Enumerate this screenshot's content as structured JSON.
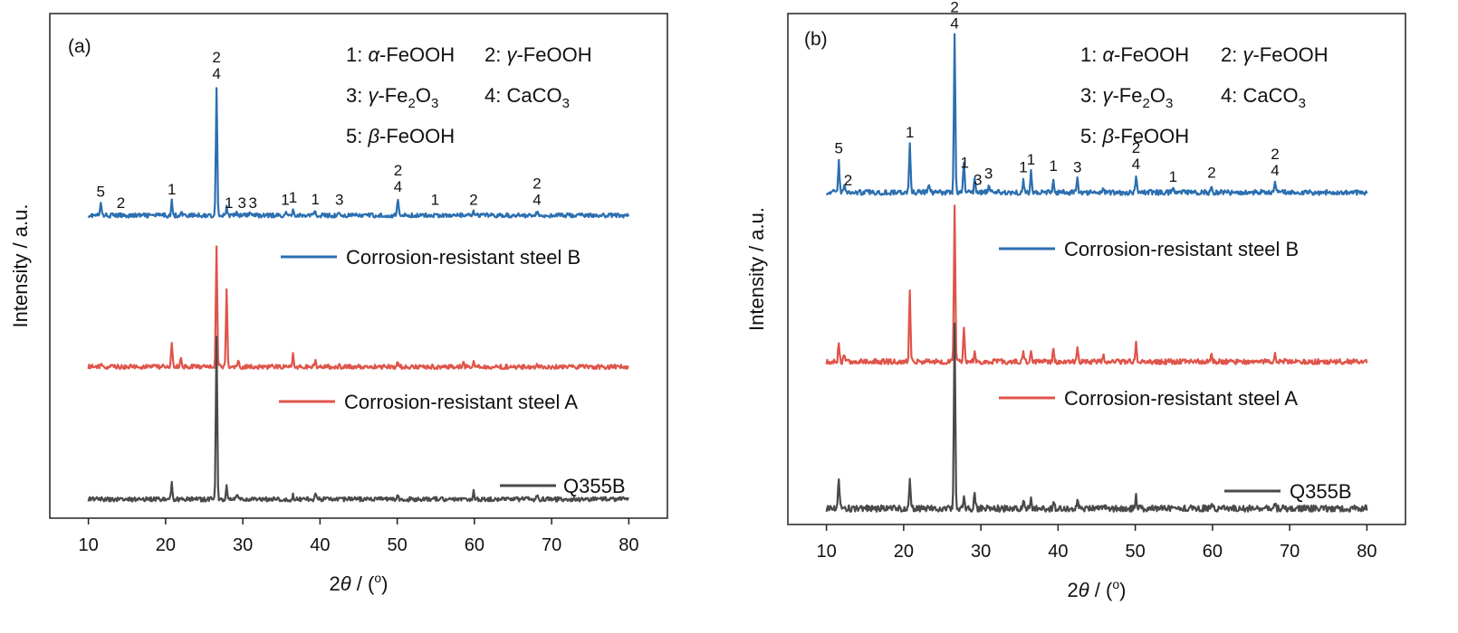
{
  "chart_data": [
    {
      "type": "line",
      "panel_label": "(a)",
      "xlabel": "2θ / (°)",
      "ylabel": "Intensity / a.u.",
      "xlim": [
        5,
        85
      ],
      "xticks": [
        10,
        20,
        30,
        40,
        50,
        60,
        70,
        80
      ],
      "yticks": [],
      "grid": false,
      "phase_legend": [
        {
          "num": "1:",
          "sym": "α",
          "rest": "-FeOOH"
        },
        {
          "num": "2:",
          "sym": "γ",
          "rest": "-FeOOH"
        },
        {
          "num": "3:",
          "sym": "γ",
          "rest": "-Fe2O3"
        },
        {
          "num": "4:",
          "rest": "CaCO3"
        },
        {
          "num": "5:",
          "sym": "β",
          "rest": "-FeOOH"
        }
      ],
      "series": [
        {
          "name": "Corrosion-resistant steel B",
          "color": "#2b6fb0",
          "baseline": 4.8,
          "noise": 0.035,
          "peaks": [
            [
              11.6,
              0.18
            ],
            [
              20.8,
              0.22
            ],
            [
              22.0,
              0.07
            ],
            [
              26.6,
              2.05
            ],
            [
              27.9,
              0.12
            ],
            [
              29.2,
              0.05
            ],
            [
              31.0,
              0.05
            ],
            [
              35.5,
              0.05
            ],
            [
              36.5,
              0.09
            ],
            [
              39.4,
              0.06
            ],
            [
              42.5,
              0.05
            ],
            [
              50.1,
              0.26
            ],
            [
              54.9,
              0.05
            ],
            [
              59.9,
              0.05
            ],
            [
              68.1,
              0.05
            ]
          ]
        },
        {
          "name": "Corrosion-resistant steel A",
          "color": "#e0544a",
          "baseline": 2.4,
          "noise": 0.035,
          "peaks": [
            [
              11.6,
              0.04
            ],
            [
              20.8,
              0.35
            ],
            [
              22.0,
              0.15
            ],
            [
              26.6,
              1.9
            ],
            [
              27.9,
              1.2
            ],
            [
              29.4,
              0.12
            ],
            [
              36.5,
              0.2
            ],
            [
              39.4,
              0.1
            ],
            [
              42.5,
              0.06
            ],
            [
              50.1,
              0.07
            ],
            [
              58.6,
              0.08
            ],
            [
              59.9,
              0.1
            ],
            [
              68.1,
              0.03
            ]
          ]
        },
        {
          "name": "Q355B",
          "color": "#4a4a4a",
          "baseline": 0.3,
          "noise": 0.035,
          "peaks": [
            [
              20.8,
              0.25
            ],
            [
              26.6,
              2.6
            ],
            [
              27.9,
              0.2
            ],
            [
              29.2,
              0.08
            ],
            [
              36.5,
              0.06
            ],
            [
              39.4,
              0.08
            ],
            [
              42.5,
              0.05
            ],
            [
              50.1,
              0.05
            ],
            [
              59.9,
              0.12
            ],
            [
              68.1,
              0.05
            ]
          ]
        }
      ],
      "peak_labels": [
        {
          "x": 11.6,
          "text": [
            "5"
          ],
          "series": 0
        },
        {
          "x": 14.2,
          "text": [
            "2"
          ],
          "series": 0
        },
        {
          "x": 20.8,
          "text": [
            "1"
          ],
          "series": 0
        },
        {
          "x": 26.6,
          "text": [
            "2",
            "4"
          ],
          "series": 0
        },
        {
          "x": 28.2,
          "text": [
            "1"
          ],
          "series": 0
        },
        {
          "x": 29.9,
          "text": [
            "3"
          ],
          "series": 0
        },
        {
          "x": 31.3,
          "text": [
            "3"
          ],
          "series": 0
        },
        {
          "x": 35.5,
          "text": [
            "1"
          ],
          "series": 0
        },
        {
          "x": 36.5,
          "text": [
            "1"
          ],
          "series": 0
        },
        {
          "x": 39.4,
          "text": [
            "1"
          ],
          "series": 0
        },
        {
          "x": 42.5,
          "text": [
            "3"
          ],
          "series": 0
        },
        {
          "x": 50.1,
          "text": [
            "2",
            "4"
          ],
          "series": 0
        },
        {
          "x": 54.9,
          "text": [
            "1"
          ],
          "series": 0
        },
        {
          "x": 59.9,
          "text": [
            "2"
          ],
          "series": 0
        },
        {
          "x": 68.1,
          "text": [
            "2",
            "4"
          ],
          "series": 0
        }
      ],
      "ylim": [
        0,
        8
      ]
    },
    {
      "type": "line",
      "panel_label": "(b)",
      "xlabel": "2θ / (°)",
      "ylabel": "Intensity / a.u.",
      "xlim": [
        5,
        85
      ],
      "xticks": [
        10,
        20,
        30,
        40,
        50,
        60,
        70,
        80
      ],
      "yticks": [],
      "grid": false,
      "phase_legend": [
        {
          "num": "1:",
          "sym": "α",
          "rest": "-FeOOH"
        },
        {
          "num": "2:",
          "sym": "γ",
          "rest": "-FeOOH"
        },
        {
          "num": "3:",
          "sym": "γ",
          "rest": "-Fe2O3"
        },
        {
          "num": "4:",
          "rest": "CaCO3"
        },
        {
          "num": "5:",
          "sym": "β",
          "rest": "-FeOOH"
        }
      ],
      "series": [
        {
          "name": "Corrosion-resistant steel B",
          "color": "#2b6fb0",
          "baseline": 5.2,
          "noise": 0.04,
          "peaks": [
            [
              11.6,
              0.5
            ],
            [
              12.3,
              0.12
            ],
            [
              20.8,
              0.75
            ],
            [
              23.3,
              0.15
            ],
            [
              26.6,
              2.45
            ],
            [
              27.8,
              0.5
            ],
            [
              29.2,
              0.2
            ],
            [
              31.0,
              0.1
            ],
            [
              35.5,
              0.2
            ],
            [
              36.5,
              0.32
            ],
            [
              39.4,
              0.22
            ],
            [
              42.5,
              0.2
            ],
            [
              45.9,
              0.08
            ],
            [
              50.1,
              0.25
            ],
            [
              54.9,
              0.05
            ],
            [
              59.9,
              0.12
            ],
            [
              68.1,
              0.15
            ]
          ]
        },
        {
          "name": "Corrosion-resistant steel A",
          "color": "#e0544a",
          "baseline": 2.55,
          "noise": 0.04,
          "peaks": [
            [
              11.6,
              0.3
            ],
            [
              12.3,
              0.1
            ],
            [
              20.8,
              1.1
            ],
            [
              26.6,
              2.45
            ],
            [
              27.8,
              0.55
            ],
            [
              29.2,
              0.15
            ],
            [
              35.5,
              0.2
            ],
            [
              36.5,
              0.2
            ],
            [
              39.4,
              0.22
            ],
            [
              42.5,
              0.2
            ],
            [
              45.9,
              0.08
            ],
            [
              50.1,
              0.3
            ],
            [
              59.9,
              0.12
            ],
            [
              68.1,
              0.15
            ]
          ]
        },
        {
          "name": "Q355B",
          "color": "#4a4a4a",
          "baseline": 0.25,
          "noise": 0.05,
          "peaks": [
            [
              11.6,
              0.5
            ],
            [
              20.8,
              0.45
            ],
            [
              26.6,
              2.85
            ],
            [
              27.8,
              0.2
            ],
            [
              29.2,
              0.25
            ],
            [
              35.5,
              0.12
            ],
            [
              36.5,
              0.2
            ],
            [
              39.4,
              0.12
            ],
            [
              42.5,
              0.12
            ],
            [
              50.1,
              0.2
            ],
            [
              59.9,
              0.12
            ],
            [
              68.1,
              0.1
            ]
          ]
        }
      ],
      "peak_labels": [
        {
          "x": 11.6,
          "text": [
            "5"
          ],
          "series": 0
        },
        {
          "x": 12.8,
          "text": [
            "2"
          ],
          "series": 0
        },
        {
          "x": 20.8,
          "text": [
            "1"
          ],
          "series": 0
        },
        {
          "x": 26.6,
          "text": [
            "2",
            "4"
          ],
          "series": 0
        },
        {
          "x": 27.9,
          "text": [
            "1"
          ],
          "series": 0
        },
        {
          "x": 29.6,
          "text": [
            "3"
          ],
          "series": 0
        },
        {
          "x": 31.0,
          "text": [
            "3"
          ],
          "series": 0
        },
        {
          "x": 35.5,
          "text": [
            "1"
          ],
          "series": 0
        },
        {
          "x": 36.5,
          "text": [
            "1"
          ],
          "series": 0
        },
        {
          "x": 39.4,
          "text": [
            "1"
          ],
          "series": 0
        },
        {
          "x": 42.5,
          "text": [
            "3"
          ],
          "series": 0
        },
        {
          "x": 50.1,
          "text": [
            "2",
            "4"
          ],
          "series": 0
        },
        {
          "x": 54.9,
          "text": [
            "1"
          ],
          "series": 0
        },
        {
          "x": 59.9,
          "text": [
            "2"
          ],
          "series": 0
        },
        {
          "x": 68.1,
          "text": [
            "2",
            "4"
          ],
          "series": 0
        }
      ],
      "ylim": [
        0,
        8
      ]
    }
  ]
}
